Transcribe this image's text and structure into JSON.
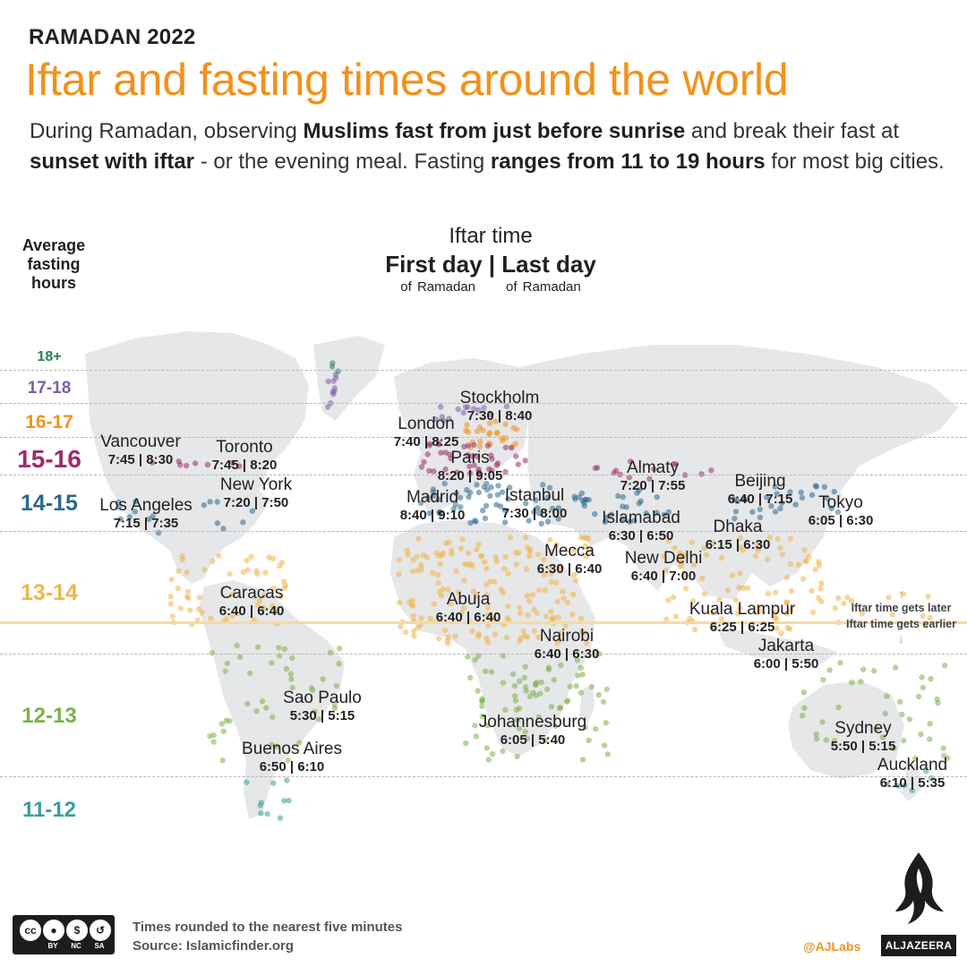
{
  "header": {
    "kicker": "RAMADAN 2022",
    "title": "Iftar and fasting times around the world",
    "intro": [
      {
        "t": "During Ramadan, observing ",
        "b": false
      },
      {
        "t": "Muslims fast from just before sunrise",
        "b": true
      },
      {
        "t": " and break their fast at ",
        "b": false
      },
      {
        "t": "sunset with iftar",
        "b": true
      },
      {
        "t": " - or the evening meal. Fasting ",
        "b": false
      },
      {
        "t": "ranges from 11 to 19 hours",
        "b": true
      },
      {
        "t": " for most big cities.",
        "b": false
      }
    ]
  },
  "legend": {
    "heading": [
      "Average",
      "fasting",
      "hours"
    ],
    "bands": [
      {
        "label": "18+",
        "color": "#2e7d4f"
      },
      {
        "label": "17-18",
        "color": "#7b60a8"
      },
      {
        "label": "16-17",
        "color": "#f2911b"
      },
      {
        "label": "15-16",
        "color": "#9b2d6b"
      },
      {
        "label": "14-15",
        "color": "#2a6a8e"
      },
      {
        "label": "13-14",
        "color": "#efb54b"
      },
      {
        "label": "12-13",
        "color": "#7bb04a"
      },
      {
        "label": "11-12",
        "color": "#3a9ea0"
      }
    ]
  },
  "key": {
    "title": "Iftar time",
    "days": "First day | Last day",
    "sub_left": "of Ramadan",
    "sub_right": "of Ramadan"
  },
  "cities": [
    {
      "name": "Stockholm",
      "times": "7:30 | 8:40"
    },
    {
      "name": "London",
      "times": "7:40 | 8:25"
    },
    {
      "name": "Vancouver",
      "times": "7:45 | 8:30"
    },
    {
      "name": "Toronto",
      "times": "7:45 | 8:20"
    },
    {
      "name": "New York",
      "times": "7:20 | 7:50"
    },
    {
      "name": "Los Angeles",
      "times": "7:15 | 7:35"
    },
    {
      "name": "Paris",
      "times": "8:20 | 9:05"
    },
    {
      "name": "Madrid",
      "times": "8:40 | 9:10"
    },
    {
      "name": "Istanbul",
      "times": "7:30 | 8:00"
    },
    {
      "name": "Almaty",
      "times": "7:20 | 7:55"
    },
    {
      "name": "Beijing",
      "times": "6:40 | 7:15"
    },
    {
      "name": "Tokyo",
      "times": "6:05 | 6:30"
    },
    {
      "name": "Islamabad",
      "times": "6:30 | 6:50"
    },
    {
      "name": "Dhaka",
      "times": "6:15 | 6:30"
    },
    {
      "name": "Mecca",
      "times": "6:30 | 6:40"
    },
    {
      "name": "New Delhi",
      "times": "6:40 | 7:00"
    },
    {
      "name": "Caracas",
      "times": "6:40 | 6:40"
    },
    {
      "name": "Abuja",
      "times": "6:40 | 6:40"
    },
    {
      "name": "Kuala Lampur",
      "times": "6:25 | 6:25"
    },
    {
      "name": "Nairobi",
      "times": "6:40 | 6:30"
    },
    {
      "name": "Jakarta",
      "times": "6:00 | 5:50"
    },
    {
      "name": "Sao Paulo",
      "times": "5:30 | 5:15"
    },
    {
      "name": "Johannesburg",
      "times": "6:05 | 5:40"
    },
    {
      "name": "Buenos Aires",
      "times": "6:50 | 6:10"
    },
    {
      "name": "Sydney",
      "times": "5:50 | 5:15"
    },
    {
      "name": "Auckland",
      "times": "6:10 | 5:35"
    }
  ],
  "equator_note": {
    "later": "Iftar time gets later",
    "earlier": "Iftar time gets earlier"
  },
  "footer": {
    "note": "Times rounded to the nearest five minutes",
    "source": "Source: Islamicfinder.org",
    "license": [
      "BY",
      "NC",
      "SA"
    ],
    "handle": "@AJLabs",
    "brand": "ALJAZEERA"
  }
}
